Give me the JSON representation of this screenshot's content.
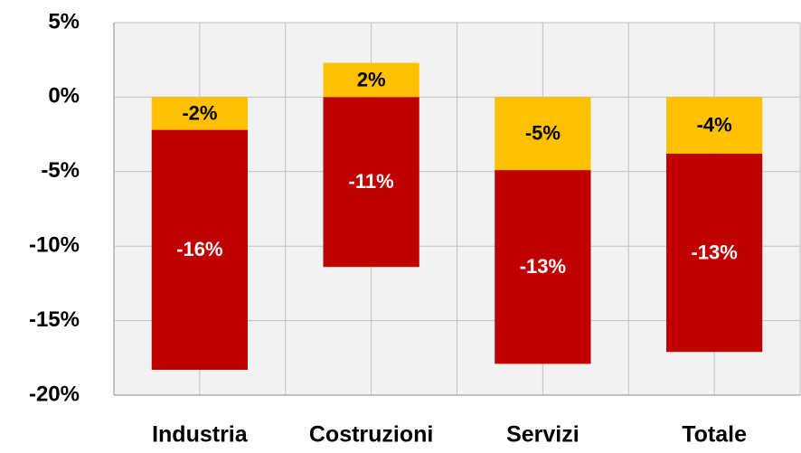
{
  "chart_data": {
    "type": "stacked_bar",
    "categories": [
      "Industria",
      "Costruzioni",
      "Servizi",
      "Totale"
    ],
    "series": [
      {
        "color": "#ffc000",
        "values": [
          -2.2,
          2.3,
          -4.9,
          -3.8
        ],
        "value_labels": [
          "-2%",
          "2%",
          "-5%",
          "-4%"
        ]
      },
      {
        "color": "#c00000",
        "values": [
          -16.1,
          -11.4,
          -13.0,
          -13.3
        ],
        "value_labels": [
          "-16%",
          "-11%",
          "-13%",
          "-13%"
        ]
      }
    ],
    "ylim": [
      -20,
      5
    ],
    "yticks": [
      {
        "value": -20,
        "label": "-20%"
      },
      {
        "value": -15,
        "label": "-15%"
      },
      {
        "value": -10,
        "label": "-10%"
      },
      {
        "value": -5,
        "label": "-5%"
      },
      {
        "value": 0,
        "label": "0%"
      },
      {
        "value": 5,
        "label": "5%"
      }
    ],
    "grid": true
  }
}
